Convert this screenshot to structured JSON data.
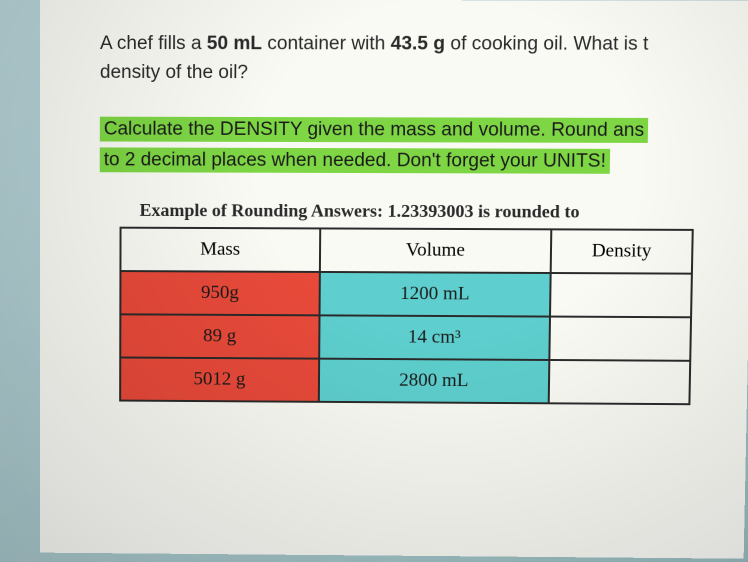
{
  "question": {
    "line1_prefix": "A chef fills a ",
    "volume_val": "50 mL",
    "line1_mid": " container with ",
    "mass_val": "43.5 g",
    "line1_suffix": " of cooking oil. What is t",
    "line2": "density of the oil?"
  },
  "instruction": {
    "line1": "Calculate the DENSITY given the mass and volume. Round ans",
    "line2": "to 2 decimal places when needed. Don't forget your UNITS!"
  },
  "example_heading": "Example of Rounding Answers: 1.23393003 is rounded to ",
  "table": {
    "headers": {
      "mass": "Mass",
      "volume": "Volume",
      "density": "Density"
    },
    "rows": [
      {
        "mass": "950g",
        "volume": "1200 mL",
        "density": ""
      },
      {
        "mass": "89 g",
        "volume": "14 cm³",
        "density": ""
      },
      {
        "mass": "5012  g",
        "volume": "2800 mL",
        "density": ""
      }
    ]
  },
  "colors": {
    "highlight_bg": "#7ed645",
    "mass_bg": "#e84a3a",
    "volume_bg": "#5ecfce",
    "page_bg": "#fafaf5",
    "border": "#2a2a2a"
  }
}
